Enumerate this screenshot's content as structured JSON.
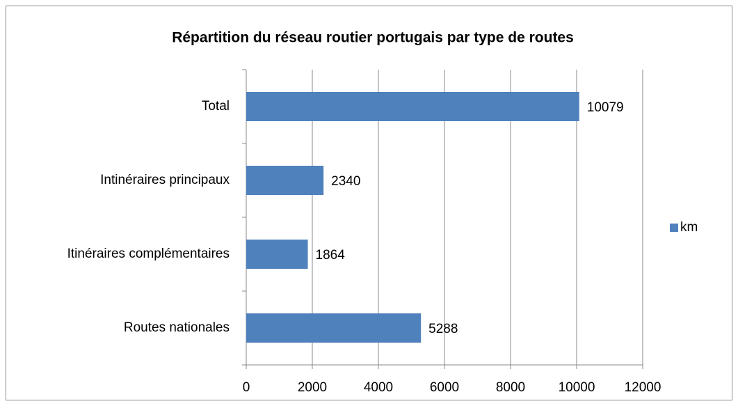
{
  "chart_data": {
    "type": "bar",
    "orientation": "horizontal",
    "title": "Répartition du réseau routier portugais par type de routes",
    "categories": [
      "Total",
      "Intinéraires principaux",
      "Itinéraires complémentaires",
      "Routes nationales"
    ],
    "series": [
      {
        "name": "km",
        "color": "#4f81bd",
        "values": [
          10079,
          2340,
          1864,
          5288
        ]
      }
    ],
    "xlim": [
      0,
      12000
    ],
    "xticks": [
      0,
      2000,
      4000,
      6000,
      8000,
      10000,
      12000
    ],
    "grid": true,
    "legend": "right"
  }
}
